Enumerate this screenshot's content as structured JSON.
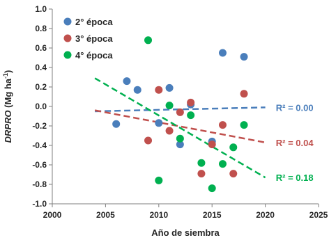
{
  "chart_data": {
    "type": "scatter",
    "xlabel": "Año de siembra",
    "ylabel_main": "DRPRO",
    "ylabel_unit": " (Mg ha",
    "ylabel_sup": "-1",
    "ylabel_close": ")",
    "xlim": [
      2000,
      2025
    ],
    "ylim": [
      -1.0,
      1.0
    ],
    "xticks": [
      2000,
      2005,
      2010,
      2015,
      2020,
      2025
    ],
    "yticks": [
      -1.0,
      -0.8,
      -0.6,
      -0.4,
      -0.2,
      0.0,
      0.2,
      0.4,
      0.6,
      0.8,
      1.0
    ],
    "ytick_labels": [
      "-1.0",
      "-0.8",
      "-0.6",
      "-0.4",
      "-0.2",
      "0.0",
      "0.2",
      "0.4",
      "0.6",
      "0.8",
      "1.0"
    ],
    "xtick_labels": [
      "2000",
      "2005",
      "2010",
      "2015",
      "2020",
      "2025"
    ],
    "grid": false,
    "legend_position": "top-left",
    "series": [
      {
        "name": "2° época",
        "color": "#4a7ebb",
        "points": [
          [
            2006,
            -0.18
          ],
          [
            2007,
            0.26
          ],
          [
            2008,
            0.17
          ],
          [
            2010,
            -0.17
          ],
          [
            2011,
            0.19
          ],
          [
            2012,
            -0.39
          ],
          [
            2013,
            0.02
          ],
          [
            2015,
            -0.36
          ],
          [
            2016,
            0.55
          ],
          [
            2018,
            0.51
          ]
        ],
        "trend": {
          "x": [
            2004,
            2020
          ],
          "y": [
            -0.05,
            -0.01
          ]
        },
        "r2_label": "R² = 0.00",
        "r2_anchor": [
          2020.6,
          -0.01
        ]
      },
      {
        "name": "3° época",
        "color": "#c0504d",
        "points": [
          [
            2009,
            -0.35
          ],
          [
            2010,
            0.17
          ],
          [
            2011,
            -0.25
          ],
          [
            2012,
            -0.06
          ],
          [
            2013,
            0.04
          ],
          [
            2014,
            -0.69
          ],
          [
            2015,
            -0.39
          ],
          [
            2016,
            -0.19
          ],
          [
            2017,
            -0.69
          ],
          [
            2018,
            0.13
          ]
        ],
        "trend": {
          "x": [
            2004,
            2020
          ],
          "y": [
            -0.04,
            -0.37
          ]
        },
        "r2_label": "R² = 0.04",
        "r2_anchor": [
          2020.6,
          -0.37
        ]
      },
      {
        "name": "4° época",
        "color": "#00b050",
        "points": [
          [
            2009,
            0.68
          ],
          [
            2010,
            -0.76
          ],
          [
            2011,
            0.01
          ],
          [
            2012,
            -0.33
          ],
          [
            2013,
            -0.09
          ],
          [
            2014,
            -0.58
          ],
          [
            2015,
            -0.84
          ],
          [
            2016,
            -0.59
          ],
          [
            2017,
            -0.42
          ],
          [
            2018,
            -0.19
          ]
        ],
        "trend": {
          "x": [
            2004,
            2020
          ],
          "y": [
            0.29,
            -0.73
          ]
        },
        "r2_label": "R² = 0.18",
        "r2_anchor": [
          2020.6,
          -0.73
        ]
      }
    ]
  }
}
